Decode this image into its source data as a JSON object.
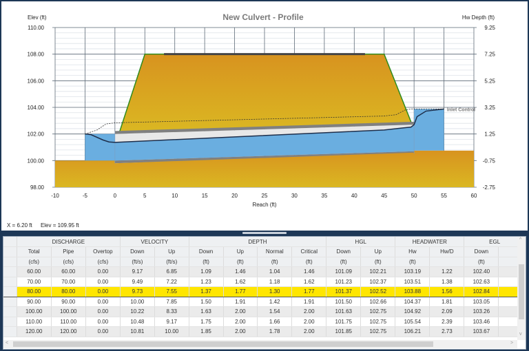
{
  "chart_data": {
    "type": "area",
    "title": "New Culvert - Profile",
    "xlabel": "Reach (ft)",
    "ylabel": "Elev (ft)",
    "y2label": "Hw Depth (ft)",
    "xlim": [
      -10,
      60
    ],
    "ylim": [
      98,
      110
    ],
    "y2lim": [
      -2.75,
      9.25
    ],
    "xticks": [
      "-10",
      "-5",
      "0",
      "5",
      "10",
      "15",
      "20",
      "25",
      "30",
      "35",
      "40",
      "45",
      "50",
      "55",
      "60"
    ],
    "yticks": [
      "98.00",
      "100.00",
      "102.00",
      "104.00",
      "106.00",
      "108.00",
      "110.00"
    ],
    "y2ticks": [
      "-2.75",
      "-0.75",
      "1.25",
      "3.25",
      "5.25",
      "7.25",
      "9.25"
    ],
    "grid": true,
    "annotation": "Inlet Control",
    "colors": {
      "embankment": "#d9a21e",
      "ground": "#d9a21e",
      "water": "#6aaee0",
      "pipe": "#808080",
      "road": "#444444",
      "slope": "#2e8b1e",
      "hgl": "#1e2e4a"
    },
    "ground": [
      [
        -10,
        100
      ],
      [
        0,
        100
      ],
      [
        0,
        99.8
      ],
      [
        50,
        100.6
      ],
      [
        50,
        100.75
      ],
      [
        60,
        100.75
      ],
      [
        60,
        98
      ],
      [
        -10,
        98
      ]
    ],
    "embankment": [
      [
        0.8,
        102.2
      ],
      [
        5,
        108
      ],
      [
        45,
        108
      ],
      [
        49.5,
        102.9
      ]
    ],
    "road": [
      [
        8.2,
        108
      ],
      [
        41.8,
        108
      ]
    ],
    "pipe_invert": [
      [
        0,
        100.0
      ],
      [
        50,
        100.7
      ]
    ],
    "pipe_crown": [
      [
        0,
        102.0
      ],
      [
        50,
        102.7
      ]
    ],
    "tailwater_pool": {
      "x": [
        -5,
        0
      ],
      "bottom": 100,
      "surface": 102.0
    },
    "headwater_pool": {
      "x": [
        50,
        55
      ],
      "bottom": 100.75,
      "surface": 103.88
    },
    "hgl": [
      [
        -5,
        102.0
      ],
      [
        -4,
        101.95
      ],
      [
        -2,
        101.55
      ],
      [
        -1,
        101.4
      ],
      [
        0,
        101.37
      ],
      [
        45,
        102.3
      ],
      [
        48,
        102.45
      ],
      [
        49.5,
        102.52
      ],
      [
        50,
        102.7
      ],
      [
        50.5,
        103.3
      ],
      [
        52,
        103.72
      ],
      [
        55,
        103.88
      ]
    ],
    "egl": [
      [
        -5,
        102.0
      ],
      [
        -3,
        102.3
      ],
      [
        -1.5,
        102.75
      ],
      [
        0,
        102.84
      ],
      [
        45,
        103.35
      ],
      [
        47,
        103.45
      ],
      [
        48.5,
        103.8
      ],
      [
        49.5,
        103.88
      ],
      [
        55,
        103.88
      ]
    ]
  },
  "readout": {
    "x": "X = 6.20 ft",
    "elev": "Elev = 109.95 ft"
  },
  "table": {
    "groups": [
      [
        "DISCHARGE",
        3
      ],
      [
        "VELOCITY",
        2
      ],
      [
        "DEPTH",
        4
      ],
      [
        "HGL",
        2
      ],
      [
        "HEADWATER",
        2
      ],
      [
        "EGL",
        2
      ]
    ],
    "columns": [
      "Total",
      "Pipe",
      "Overtop",
      "Down",
      "Up",
      "Down",
      "Up",
      "Normal",
      "Critical",
      "Down",
      "Up",
      "Hw",
      "Hw/D",
      "Down",
      ""
    ],
    "units": [
      "(cfs)",
      "(cfs)",
      "(cfs)",
      "(ft/s)",
      "(ft/s)",
      "(ft)",
      "(ft)",
      "(ft)",
      "(ft)",
      "(ft)",
      "(ft)",
      "(ft)",
      "",
      "(ft)",
      ""
    ],
    "selected_row": 2,
    "rows": [
      [
        "60.00",
        "60.00",
        "0.00",
        "9.17",
        "6.85",
        "1.09",
        "1.46",
        "1.04",
        "1.46",
        "101.09",
        "102.21",
        "103.19",
        "1.22",
        "102.40",
        ""
      ],
      [
        "70.00",
        "70.00",
        "0.00",
        "9.49",
        "7.22",
        "1.23",
        "1.62",
        "1.18",
        "1.62",
        "101.23",
        "102.37",
        "103.51",
        "1.38",
        "102.63",
        ""
      ],
      [
        "80.00",
        "80.00",
        "0.00",
        "9.73",
        "7.55",
        "1.37",
        "1.77",
        "1.30",
        "1.77",
        "101.37",
        "102.52",
        "103.88",
        "1.56",
        "102.84",
        ""
      ],
      [
        "90.00",
        "90.00",
        "0.00",
        "10.00",
        "7.85",
        "1.50",
        "1.91",
        "1.42",
        "1.91",
        "101.50",
        "102.66",
        "104.37",
        "1.81",
        "103.05",
        ""
      ],
      [
        "100.00",
        "100.00",
        "0.00",
        "10.22",
        "8.33",
        "1.63",
        "2.00",
        "1.54",
        "2.00",
        "101.63",
        "102.75",
        "104.92",
        "2.09",
        "103.26",
        ""
      ],
      [
        "110.00",
        "110.00",
        "0.00",
        "10.48",
        "9.17",
        "1.75",
        "2.00",
        "1.66",
        "2.00",
        "101.75",
        "102.75",
        "105.54",
        "2.39",
        "103.46",
        ""
      ],
      [
        "120.00",
        "120.00",
        "0.00",
        "10.81",
        "10.00",
        "1.85",
        "2.00",
        "1.78",
        "2.00",
        "101.85",
        "102.75",
        "106.21",
        "2.73",
        "103.67",
        ""
      ]
    ]
  }
}
